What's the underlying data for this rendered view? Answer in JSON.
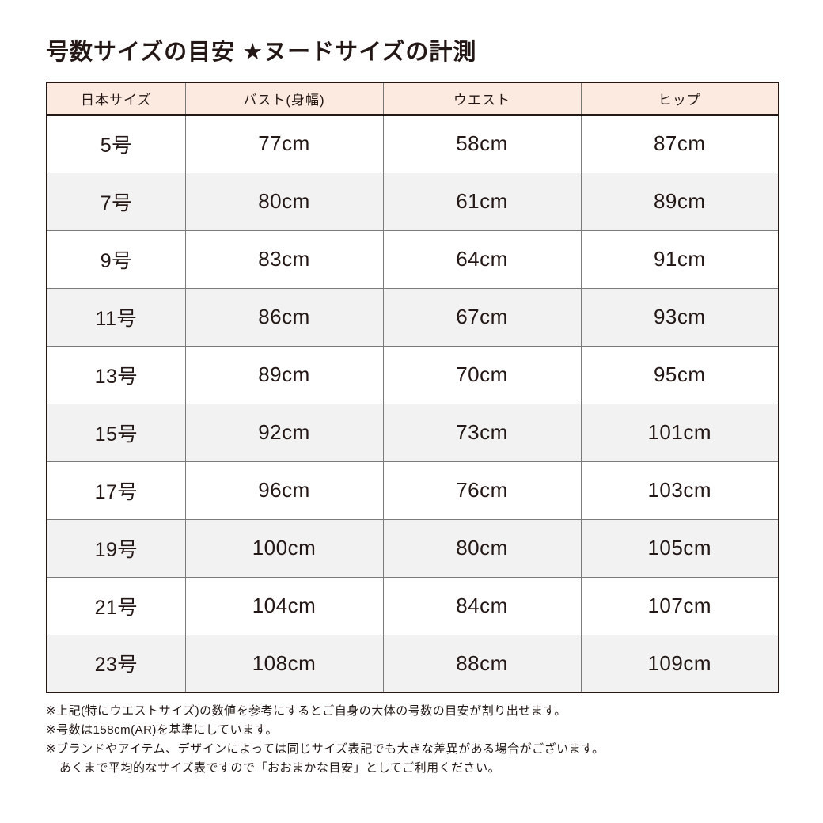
{
  "title": "号数サイズの目安 ★ヌードサイズの計測",
  "table": {
    "headers": [
      "日本サイズ",
      "バスト(身幅)",
      "ウエスト",
      "ヒップ"
    ],
    "rows": [
      [
        "5号",
        "77cm",
        "58cm",
        "87cm"
      ],
      [
        "7号",
        "80cm",
        "61cm",
        "89cm"
      ],
      [
        "9号",
        "83cm",
        "64cm",
        "91cm"
      ],
      [
        "11号",
        "86cm",
        "67cm",
        "93cm"
      ],
      [
        "13号",
        "89cm",
        "70cm",
        "95cm"
      ],
      [
        "15号",
        "92cm",
        "73cm",
        "101cm"
      ],
      [
        "17号",
        "96cm",
        "76cm",
        "103cm"
      ],
      [
        "19号",
        "100cm",
        "80cm",
        "105cm"
      ],
      [
        "21号",
        "104cm",
        "84cm",
        "107cm"
      ],
      [
        "23号",
        "108cm",
        "88cm",
        "109cm"
      ]
    ]
  },
  "notes": [
    "※上記(特にウエストサイズ)の数値を参考にするとご自身の大体の号数の目安が割り出せます。",
    "※号数は158cm(AR)を基準にしています。",
    "※ブランドやアイテム、デザインによっては同じサイズ表記でも大きな差異がある場合がございます。",
    "あくまで平均的なサイズ表ですので「おおまかな目安」としてご利用ください。"
  ],
  "colors": {
    "header_bg": "#fce9df",
    "row_even_bg": "#f2f2f2",
    "row_odd_bg": "#ffffff",
    "border_dark": "#231815",
    "border_gray": "#7a7a7a",
    "text": "#231815"
  }
}
